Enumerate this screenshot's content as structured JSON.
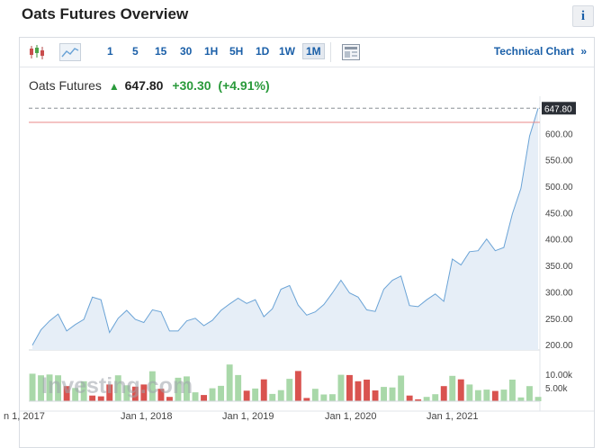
{
  "header": {
    "title": "Oats Futures Overview",
    "info_label": "i"
  },
  "toolbar": {
    "intervals": [
      "1",
      "5",
      "15",
      "30",
      "1H",
      "5H",
      "1D",
      "1W",
      "1M"
    ],
    "active_interval": "1M",
    "technical_chart_label": "Technical Chart",
    "technical_chart_arrow": "»"
  },
  "quote": {
    "name": "Oats Futures",
    "price": "647.80",
    "change": "+30.30",
    "change_pct": "(+4.91%)",
    "direction_icon": "up-arrow-icon"
  },
  "colors": {
    "line": "#6aa3d6",
    "area": "#e6eef7",
    "up_volume": "#a9d8a9",
    "down_volume": "#d9534f",
    "ref_line": "#e88a8a",
    "accent": "#1a5fa8"
  },
  "watermark": "Investing.com",
  "chart_data": {
    "type": "area",
    "x_tick_labels": [
      "n 1, 2017",
      "Jan 1, 2018",
      "Jan 1, 2019",
      "Jan 1, 2020",
      "Jan 1, 2021"
    ],
    "y_tick_labels": [
      "200.00",
      "250.00",
      "300.00",
      "350.00",
      "400.00",
      "450.00",
      "500.00",
      "550.00",
      "600.00"
    ],
    "ylim": [
      190,
      650
    ],
    "last_price_label": "647.80",
    "reference_line_value": 621,
    "series": [
      {
        "values": [
          199,
          228,
          245,
          258,
          226,
          238,
          248,
          290,
          285,
          223,
          250,
          265,
          248,
          242,
          266,
          262,
          226,
          226,
          245,
          250,
          236,
          246,
          265,
          277,
          288,
          278,
          285,
          253,
          268,
          305,
          312,
          275,
          256,
          262,
          276,
          298,
          322,
          298,
          290,
          266,
          263,
          305,
          322,
          330,
          274,
          272,
          285,
          296,
          282,
          362,
          351,
          376,
          378,
          400,
          378,
          384,
          448,
          496,
          595,
          647.8
        ]
      }
    ],
    "volume_tick_labels": [
      "10.00k",
      "5.00k"
    ],
    "volume_ylim": [
      0,
      13000
    ],
    "volume": [
      10200,
      9600,
      9900,
      9600,
      5600,
      4900,
      7400,
      2100,
      1800,
      6200,
      9600,
      5900,
      5400,
      6200,
      11100,
      4600,
      1600,
      8700,
      9200,
      3300,
      2300,
      4800,
      5700,
      13600,
      9700,
      3900,
      4700,
      8100,
      2700,
      4100,
      8300,
      11200,
      1200,
      4600,
      2500,
      2600,
      9800,
      9700,
      7400,
      8000,
      4000,
      5300,
      5100,
      9500,
      2100,
      700,
      1600,
      2600,
      5600,
      9400,
      8100,
      6200,
      4100,
      4300,
      3800,
      4300,
      8000,
      1400,
      5600,
      1600
    ],
    "volume_direction": [
      "up",
      "up",
      "up",
      "up",
      "down",
      "up",
      "up",
      "down",
      "down",
      "down",
      "up",
      "up",
      "down",
      "down",
      "up",
      "down",
      "down",
      "up",
      "up",
      "up",
      "down",
      "up",
      "up",
      "up",
      "up",
      "down",
      "up",
      "down",
      "up",
      "up",
      "up",
      "down",
      "down",
      "up",
      "up",
      "up",
      "up",
      "down",
      "down",
      "down",
      "down",
      "up",
      "up",
      "up",
      "down",
      "down",
      "up",
      "up",
      "down",
      "up",
      "down",
      "up",
      "up",
      "up",
      "down",
      "up",
      "up",
      "up",
      "up",
      "up"
    ]
  }
}
